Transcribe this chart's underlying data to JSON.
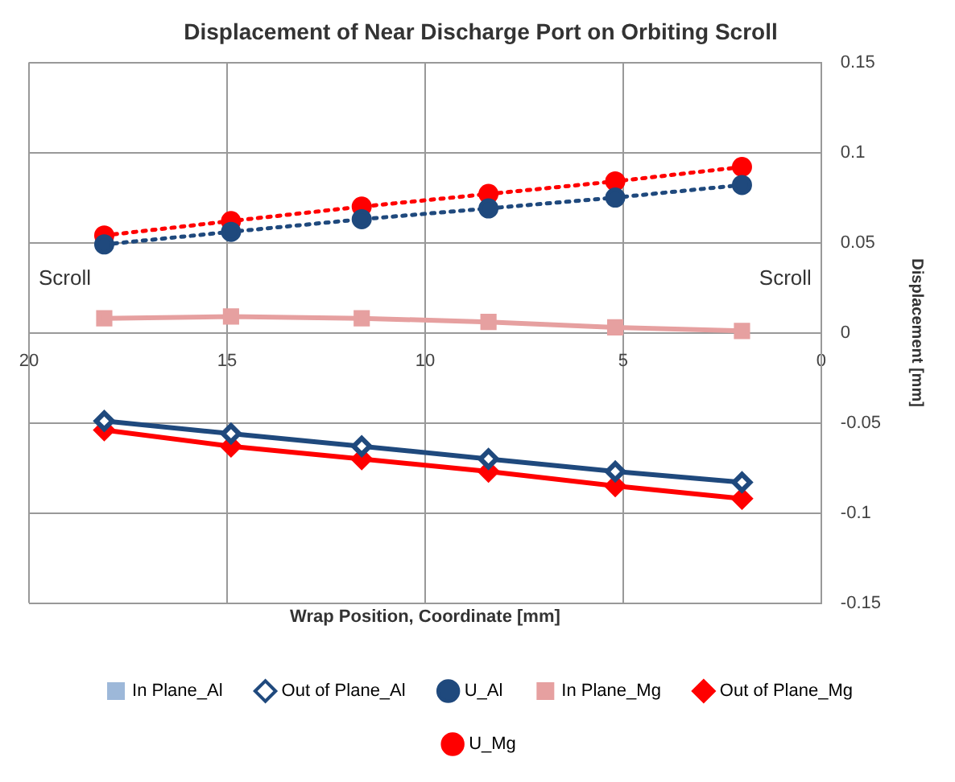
{
  "chart_data": {
    "type": "line",
    "title": "Displacement of Near Discharge Port on Orbiting Scroll",
    "xlabel": "Wrap Position, Coordinate [mm]",
    "ylabel": "Displacement [mm]",
    "x": [
      18.1,
      14.9,
      11.6,
      8.4,
      5.2,
      2.0
    ],
    "xlim": [
      20,
      0
    ],
    "xticks": [
      20,
      15,
      10,
      5,
      0
    ],
    "ylim": [
      -0.15,
      0.15
    ],
    "yticks": [
      -0.15,
      -0.1,
      -0.05,
      0,
      0.05,
      0.1,
      0.15
    ],
    "grid": true,
    "legend": "bottom",
    "annotations": [
      "Scroll",
      "Scroll"
    ],
    "series": [
      {
        "name": "In Plane_Al",
        "color": "#9db8d9",
        "marker": "square",
        "line_style": "solid",
        "values": [
          null,
          null,
          null,
          null,
          null,
          null
        ]
      },
      {
        "name": "Out of Plane_Al",
        "color": "#1f497d",
        "marker": "diamond",
        "line_style": "solid",
        "values": [
          -0.049,
          -0.056,
          -0.063,
          -0.07,
          -0.077,
          -0.083
        ]
      },
      {
        "name": "U_Al",
        "color": "#1f497d",
        "marker": "circle",
        "line_style": "dotted",
        "values": [
          0.049,
          0.056,
          0.063,
          0.069,
          0.075,
          0.082
        ]
      },
      {
        "name": "In Plane_Mg",
        "color": "#e6a0a0",
        "marker": "square",
        "line_style": "solid",
        "values": [
          0.008,
          0.009,
          0.008,
          0.006,
          0.003,
          0.001
        ]
      },
      {
        "name": "Out of Plane_Mg",
        "color": "#ff0000",
        "marker": "diamond",
        "line_style": "solid",
        "values": [
          -0.054,
          -0.063,
          -0.07,
          -0.077,
          -0.085,
          -0.092
        ]
      },
      {
        "name": "U_Mg",
        "color": "#ff0000",
        "marker": "circle",
        "line_style": "dotted",
        "values": [
          0.054,
          0.062,
          0.07,
          0.077,
          0.084,
          0.092
        ]
      }
    ]
  }
}
